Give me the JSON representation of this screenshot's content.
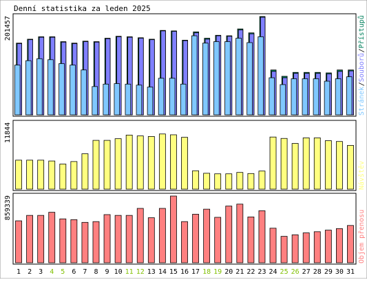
{
  "chart_data": {
    "type": "bar",
    "title": "Denní statistika za leden 2025",
    "categories": [
      "1",
      "2",
      "3",
      "4",
      "5",
      "6",
      "7",
      "8",
      "9",
      "10",
      "11",
      "12",
      "13",
      "14",
      "15",
      "16",
      "17",
      "18",
      "19",
      "20",
      "21",
      "22",
      "23",
      "24",
      "25",
      "26",
      "27",
      "28",
      "29",
      "30",
      "31"
    ],
    "weekend_days": [
      "4",
      "5",
      "11",
      "12",
      "18",
      "19",
      "25",
      "26"
    ],
    "panels": [
      {
        "id": "hits",
        "ymax_label": "201457",
        "ymax": 201457,
        "series": [
          {
            "name": "Přístupů",
            "color": "#00805c",
            "values": [
              147000,
              155000,
              160000,
              160000,
              150000,
              147000,
              151000,
              150000,
              157000,
              161000,
              160000,
              158000,
              155000,
              173000,
              172000,
              153000,
              170000,
              157000,
              163000,
              162000,
              176000,
              168000,
              201457,
              92000,
              79000,
              87000,
              87000,
              87000,
              86000,
              92000,
              92000
            ]
          },
          {
            "name": "Souborů",
            "color": "#8080ff",
            "values": [
              146000,
              154000,
              159000,
              159000,
              149000,
              146000,
              150000,
              149000,
              156000,
              160000,
              159000,
              157000,
              154000,
              172000,
              171000,
              152000,
              168000,
              155000,
              162000,
              161000,
              174000,
              166000,
              200000,
              89000,
              76000,
              85000,
              85000,
              85000,
              84000,
              89000,
              90000
            ]
          },
          {
            "name": "Stránek",
            "color": "#80c8ff",
            "values": [
              102000,
              111000,
              115000,
              113000,
              105000,
              102000,
              92000,
              58000,
              63000,
              64000,
              63000,
              61000,
              57000,
              75000,
              75000,
              63000,
              162000,
              147000,
              150000,
              150000,
              157000,
              148000,
              160000,
              76000,
              62000,
              74000,
              74000,
              74000,
              69000,
              74000,
              78000
            ]
          }
        ]
      },
      {
        "id": "visits",
        "ymax_label": "11844",
        "ymax": 11844,
        "series": [
          {
            "name": "Návštěv",
            "color": "#ffff80",
            "values": [
              5200,
              5200,
              5200,
              5050,
              4500,
              4950,
              6350,
              8750,
              8750,
              9050,
              9700,
              9550,
              9450,
              9900,
              9750,
              9300,
              3300,
              2850,
              2750,
              2750,
              3000,
              2800,
              3250,
              9350,
              9100,
              8200,
              9200,
              9200,
              8700,
              8550,
              7850
            ]
          }
        ]
      },
      {
        "id": "kb",
        "ymax_label": "859339",
        "ymax": 859339,
        "series": [
          {
            "name": "Objem přenosu",
            "color": "#ff8080",
            "values": [
              540000,
              610000,
              610000,
              650000,
              565000,
              555000,
              520000,
              530000,
              620000,
              610000,
              610000,
              700000,
              580000,
              700000,
              859339,
              530000,
              625000,
              690000,
              585000,
              730000,
              755000,
              590000,
              670000,
              445000,
              340000,
              360000,
              385000,
              400000,
              420000,
              440000,
              480000
            ]
          }
        ]
      }
    ]
  }
}
